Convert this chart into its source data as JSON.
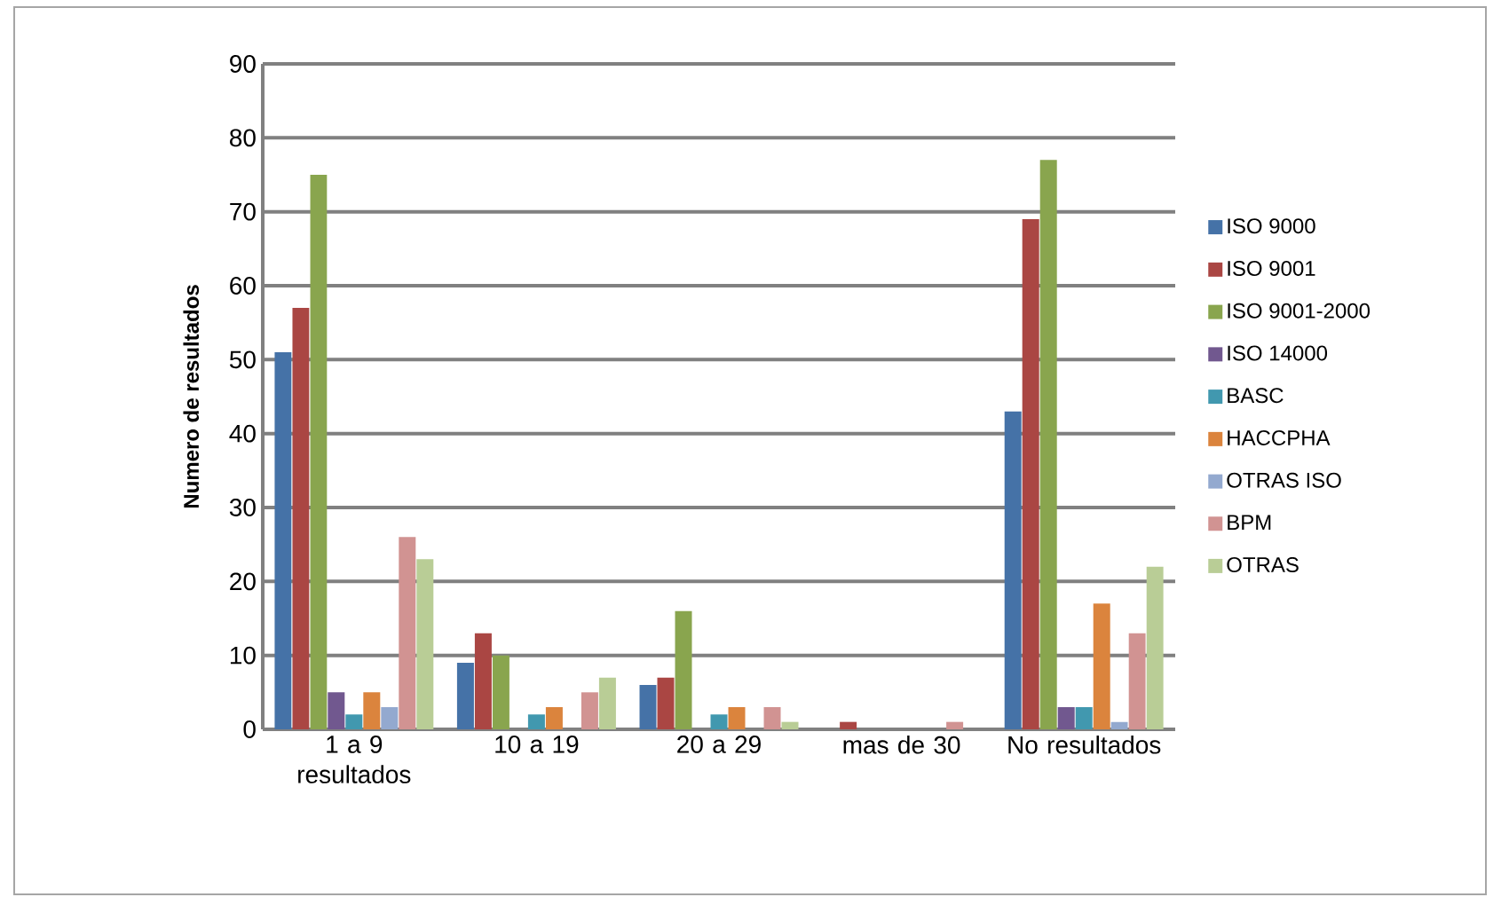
{
  "chart_data": {
    "type": "bar",
    "ylabel": "Numero de resultados",
    "categories": [
      "1 a 9 resultados",
      "10 a 19",
      "20 a 29",
      "mas de 30",
      "No resultados"
    ],
    "series": [
      {
        "name": "ISO 9000",
        "color": "#4572a7",
        "values": [
          51,
          9,
          6,
          0,
          43
        ]
      },
      {
        "name": "ISO 9001",
        "color": "#aa4643",
        "values": [
          57,
          13,
          7,
          1,
          69
        ]
      },
      {
        "name": "ISO 9001-2000",
        "color": "#89a54e",
        "values": [
          75,
          10,
          16,
          0,
          77
        ]
      },
      {
        "name": "ISO 14000",
        "color": "#71588f",
        "values": [
          5,
          0,
          0,
          0,
          3
        ]
      },
      {
        "name": "BASC",
        "color": "#4198af",
        "values": [
          2,
          2,
          2,
          0,
          3
        ]
      },
      {
        "name": "HACCPHA",
        "color": "#db843d",
        "values": [
          5,
          3,
          3,
          0,
          17
        ]
      },
      {
        "name": "OTRAS ISO",
        "color": "#93a9cf",
        "values": [
          3,
          0,
          0,
          0,
          1
        ]
      },
      {
        "name": "BPM",
        "color": "#d19392",
        "values": [
          26,
          5,
          3,
          1,
          13
        ]
      },
      {
        "name": "OTRAS",
        "color": "#b9cd96",
        "values": [
          23,
          7,
          1,
          0,
          22
        ]
      }
    ],
    "ylim": [
      0,
      90
    ],
    "yticks": [
      0,
      10,
      20,
      30,
      40,
      50,
      60,
      70,
      80,
      90
    ],
    "grid": "y",
    "legend": "right"
  }
}
